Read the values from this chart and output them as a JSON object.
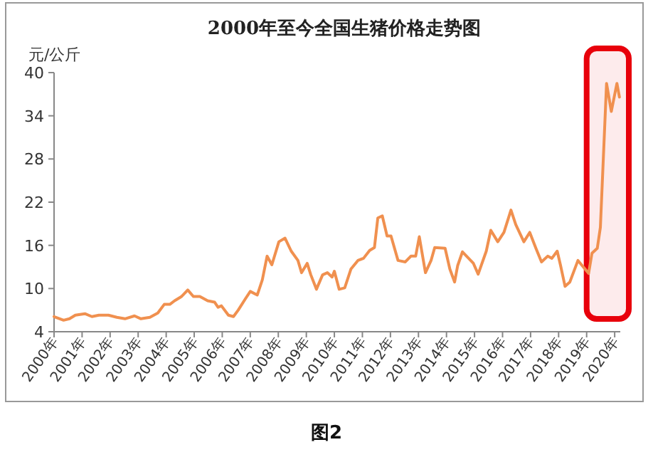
{
  "chart_data": {
    "type": "line",
    "title": "2000年至今全国生猪价格走势图",
    "ylabel": "元/公斤",
    "annotations": [
      "图2"
    ],
    "x": [
      2000.0,
      2000.34,
      2000.55,
      2000.76,
      2001.1,
      2001.35,
      2001.6,
      2001.94,
      2002.24,
      2002.53,
      2002.87,
      2003.1,
      2003.42,
      2003.7,
      2003.93,
      2004.13,
      2004.3,
      2004.55,
      2004.77,
      2004.97,
      2005.2,
      2005.48,
      2005.73,
      2005.85,
      2005.97,
      2006.22,
      2006.4,
      2006.57,
      2006.83,
      2007.0,
      2007.25,
      2007.43,
      2007.6,
      2007.77,
      2008.02,
      2008.24,
      2008.46,
      2008.7,
      2008.83,
      2009.03,
      2009.16,
      2009.36,
      2009.58,
      2009.75,
      2009.92,
      2010.0,
      2010.17,
      2010.37,
      2010.59,
      2010.84,
      2011.04,
      2011.26,
      2011.43,
      2011.55,
      2011.71,
      2011.88,
      2012.02,
      2012.27,
      2012.53,
      2012.73,
      2012.9,
      2013.03,
      2013.25,
      2013.45,
      2013.58,
      2013.95,
      2014.12,
      2014.29,
      2014.4,
      2014.57,
      2014.96,
      2015.13,
      2015.42,
      2015.58,
      2015.83,
      2016.05,
      2016.3,
      2016.47,
      2016.76,
      2016.97,
      2017.19,
      2017.39,
      2017.61,
      2017.76,
      2017.95,
      2018.07,
      2018.23,
      2018.4,
      2018.69,
      2019.07,
      2019.19,
      2019.38,
      2019.49,
      2019.71,
      2019.88,
      2020.08,
      2020.17
    ],
    "series": [
      {
        "color": "#f0904f",
        "values": [
          6.1,
          5.6,
          5.8,
          6.3,
          6.5,
          6.1,
          6.3,
          6.3,
          6.0,
          5.8,
          6.2,
          5.8,
          6.0,
          6.6,
          7.8,
          7.8,
          8.3,
          8.9,
          9.8,
          8.9,
          8.9,
          8.3,
          8.1,
          7.4,
          7.6,
          6.3,
          6.1,
          7.0,
          8.6,
          9.6,
          9.1,
          11.2,
          14.5,
          13.3,
          16.5,
          17.0,
          15.2,
          13.9,
          12.2,
          13.5,
          11.9,
          9.9,
          11.9,
          12.2,
          11.6,
          12.4,
          9.9,
          10.1,
          12.7,
          13.9,
          14.2,
          15.3,
          15.7,
          19.8,
          20.1,
          17.3,
          17.3,
          13.9,
          13.7,
          14.5,
          14.5,
          17.2,
          12.2,
          13.9,
          15.7,
          15.6,
          12.7,
          10.9,
          13.2,
          15.1,
          13.5,
          12.0,
          15.2,
          18.1,
          16.5,
          17.8,
          20.9,
          18.9,
          16.5,
          17.8,
          15.6,
          13.7,
          14.5,
          14.2,
          15.2,
          13.2,
          10.3,
          10.9,
          13.9,
          12.1,
          14.9,
          15.6,
          18.5,
          38.5,
          34.6,
          38.5,
          36.6
        ]
      }
    ],
    "xlim": [
      2000,
      2020.2
    ],
    "xticks": [
      {
        "value": 2000,
        "label": "2000年"
      },
      {
        "value": 2001,
        "label": "2001年"
      },
      {
        "value": 2002,
        "label": "2002年"
      },
      {
        "value": 2003,
        "label": "2003年"
      },
      {
        "value": 2004,
        "label": "2004年"
      },
      {
        "value": 2005,
        "label": "2005年"
      },
      {
        "value": 2006,
        "label": "2006年"
      },
      {
        "value": 2007,
        "label": "2007年"
      },
      {
        "value": 2008,
        "label": "2008年"
      },
      {
        "value": 2009,
        "label": "2009年"
      },
      {
        "value": 2010,
        "label": "2010年"
      },
      {
        "value": 2011,
        "label": "2011年"
      },
      {
        "value": 2012,
        "label": "2012年"
      },
      {
        "value": 2013,
        "label": "2013年"
      },
      {
        "value": 2014,
        "label": "2014年"
      },
      {
        "value": 2015,
        "label": "2015年"
      },
      {
        "value": 2016,
        "label": "2016年"
      },
      {
        "value": 2017,
        "label": "2017年"
      },
      {
        "value": 2018,
        "label": "2018年"
      },
      {
        "value": 2019,
        "label": "2019年"
      },
      {
        "value": 2020,
        "label": "2020年"
      }
    ],
    "ylim": [
      4,
      40
    ],
    "yticks": [
      4,
      10,
      16,
      22,
      28,
      34,
      40
    ],
    "bands": [
      {
        "axis": "x",
        "from": 2019.0,
        "to": 2020.2,
        "color": "#e8000b"
      }
    ],
    "grid": false,
    "marker": "none",
    "line_style": "solid"
  }
}
